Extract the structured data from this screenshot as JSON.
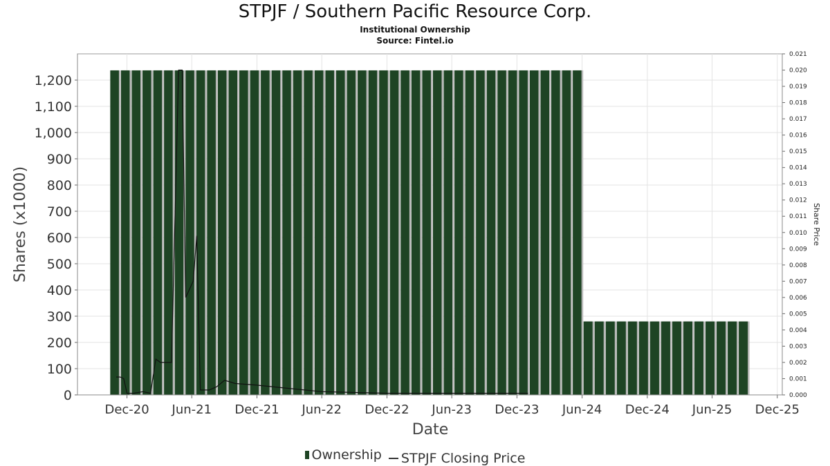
{
  "chart_data": {
    "type": "bar",
    "title": "STPJF / Southern Pacific Resource Corp.",
    "subtitle": "Institutional Ownership",
    "source": "Source: Fintel.io",
    "xlabel": "Date",
    "ylabel": "Shares (x1000)",
    "y2label": "Share Price",
    "ylim": [
      0,
      1300
    ],
    "y2lim": [
      0,
      0.021
    ],
    "xlim": [
      "2020-07-15",
      "2025-12-15"
    ],
    "yticks": [
      0,
      100,
      200,
      300,
      400,
      500,
      600,
      700,
      800,
      900,
      1000,
      1100,
      1200
    ],
    "y2ticks": [
      "0.000",
      "0.001",
      "0.002",
      "0.003",
      "0.004",
      "0.005",
      "0.006",
      "0.007",
      "0.008",
      "0.009",
      "0.010",
      "0.011",
      "0.012",
      "0.013",
      "0.014",
      "0.015",
      "0.016",
      "0.017",
      "0.018",
      "0.019",
      "0.020",
      "0.021"
    ],
    "xticks": [
      {
        "label": "Dec-20",
        "date": "2020-12-01"
      },
      {
        "label": "Jun-21",
        "date": "2021-06-01"
      },
      {
        "label": "Dec-21",
        "date": "2021-12-01"
      },
      {
        "label": "Jun-22",
        "date": "2022-06-01"
      },
      {
        "label": "Dec-22",
        "date": "2022-12-01"
      },
      {
        "label": "Jun-23",
        "date": "2023-06-01"
      },
      {
        "label": "Dec-23",
        "date": "2023-12-01"
      },
      {
        "label": "Jun-24",
        "date": "2024-06-01"
      },
      {
        "label": "Dec-24",
        "date": "2024-12-01"
      },
      {
        "label": "Jun-25",
        "date": "2025-06-01"
      },
      {
        "label": "Dec-25",
        "date": "2025-12-01"
      }
    ],
    "grid": true,
    "legend_position": "bottom",
    "series": [
      {
        "name": "Ownership",
        "type": "bar",
        "axis": "left",
        "color": "#1e4424",
        "segments": [
          {
            "start": "2020-10-15",
            "end": "2024-06-05",
            "value": 1237
          },
          {
            "start": "2024-06-05",
            "end": "2025-09-15",
            "value": 280
          }
        ]
      },
      {
        "name": "STPJF Closing Price",
        "type": "line",
        "axis": "right",
        "color": "#111111",
        "points": [
          {
            "x": "2020-11-01",
            "y": 0.0011
          },
          {
            "x": "2020-11-12",
            "y": 0.0011
          },
          {
            "x": "2020-11-22",
            "y": 0.001
          },
          {
            "x": "2020-12-01",
            "y": 0.0001
          },
          {
            "x": "2020-12-20",
            "y": 0.0001
          },
          {
            "x": "2021-01-15",
            "y": 0.0002
          },
          {
            "x": "2021-02-05",
            "y": 0.0001
          },
          {
            "x": "2021-02-20",
            "y": 0.0022
          },
          {
            "x": "2021-03-05",
            "y": 0.002
          },
          {
            "x": "2021-04-05",
            "y": 0.002
          },
          {
            "x": "2021-04-25",
            "y": 0.02
          },
          {
            "x": "2021-05-05",
            "y": 0.02
          },
          {
            "x": "2021-05-15",
            "y": 0.006
          },
          {
            "x": "2021-06-05",
            "y": 0.007
          },
          {
            "x": "2021-06-15",
            "y": 0.0098
          },
          {
            "x": "2021-06-25",
            "y": 0.0003
          },
          {
            "x": "2021-07-20",
            "y": 0.0003
          },
          {
            "x": "2021-08-10",
            "y": 0.0005
          },
          {
            "x": "2021-09-01",
            "y": 0.0009
          },
          {
            "x": "2021-10-01",
            "y": 0.0007
          },
          {
            "x": "2021-12-01",
            "y": 0.0006
          },
          {
            "x": "2022-03-01",
            "y": 0.0004
          },
          {
            "x": "2022-06-01",
            "y": 0.0002
          },
          {
            "x": "2022-12-01",
            "y": 0.0001
          },
          {
            "x": "2023-06-01",
            "y": 0.0001
          },
          {
            "x": "2024-01-01",
            "y": 0.0001
          }
        ]
      }
    ]
  }
}
